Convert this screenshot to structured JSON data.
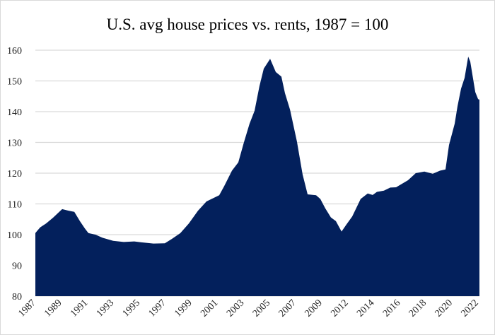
{
  "chart_data": {
    "type": "area",
    "title": "U.S. avg house prices vs. rents, 1987 = 100",
    "xlabel": "",
    "ylabel": "",
    "ylim": [
      80,
      160
    ],
    "yticks": [
      80,
      90,
      100,
      110,
      120,
      130,
      140,
      150,
      160
    ],
    "xlim": [
      1987.0,
      2023.26
    ],
    "xtick_labels": [
      "1987",
      "1989",
      "1991",
      "1993",
      "1995",
      "1997",
      "1999",
      "2001",
      "2003",
      "2005",
      "2007",
      "2009",
      "2012",
      "2014",
      "2016",
      "2018",
      "2020",
      "2022"
    ],
    "grid": true,
    "legend": "none",
    "fill_color": "#03205c",
    "grid_color": "#d9d9d9",
    "series": [
      {
        "x": [
          1987.0,
          1987.17,
          1987.4,
          1987.87,
          1988.44,
          1989.19,
          1989.71,
          1990.18,
          1990.64,
          1991.04,
          1991.33,
          1991.91,
          1992.48,
          1993.35,
          1994.22,
          1995.08,
          1995.66,
          1996.64,
          1997.57,
          1998.14,
          1998.84,
          1999.53,
          2000.28,
          2000.97,
          2002.01,
          2002.42,
          2003.05,
          2003.57,
          2004.03,
          2004.49,
          2004.9,
          2005.3,
          2005.65,
          2006.17,
          2006.63,
          2007.09,
          2007.38,
          2007.79,
          2008.36,
          2008.82,
          2009.23,
          2009.92,
          2010.27,
          2010.67,
          2011.13,
          2011.54,
          2012.0,
          2012.4,
          2012.87,
          2013.56,
          2014.14,
          2014.54,
          2014.89,
          2015.46,
          2015.98,
          2016.45,
          2017.43,
          2018.06,
          2018.76,
          2019.45,
          2020.03,
          2020.49,
          2020.78,
          2021.24,
          2021.47,
          2021.76,
          2022.05,
          2022.34,
          2022.51,
          2022.92,
          2023.15,
          2023.26
        ],
        "y": [
          100.5,
          101.3,
          102.4,
          103.6,
          105.5,
          108.3,
          107.8,
          107.4,
          104.4,
          102,
          100.5,
          100,
          99,
          98,
          97.6,
          97.8,
          97.5,
          97.1,
          97.2,
          98.6,
          100.5,
          103.6,
          107.8,
          110.8,
          112.8,
          115.8,
          120.8,
          123.5,
          130,
          136.1,
          140.3,
          148.3,
          154,
          157.2,
          152.9,
          151.4,
          146,
          140.7,
          130.3,
          119.6,
          113.1,
          112.8,
          111.6,
          108.6,
          105.6,
          104.4,
          101,
          103.3,
          105.9,
          111.6,
          113.4,
          112.9,
          113.9,
          114.3,
          115.3,
          115.4,
          117.7,
          120,
          120.5,
          119.8,
          120.8,
          121.2,
          129.2,
          136.1,
          141.8,
          147.5,
          151,
          157.9,
          156.3,
          146.4,
          144.1,
          143.9
        ]
      }
    ]
  }
}
